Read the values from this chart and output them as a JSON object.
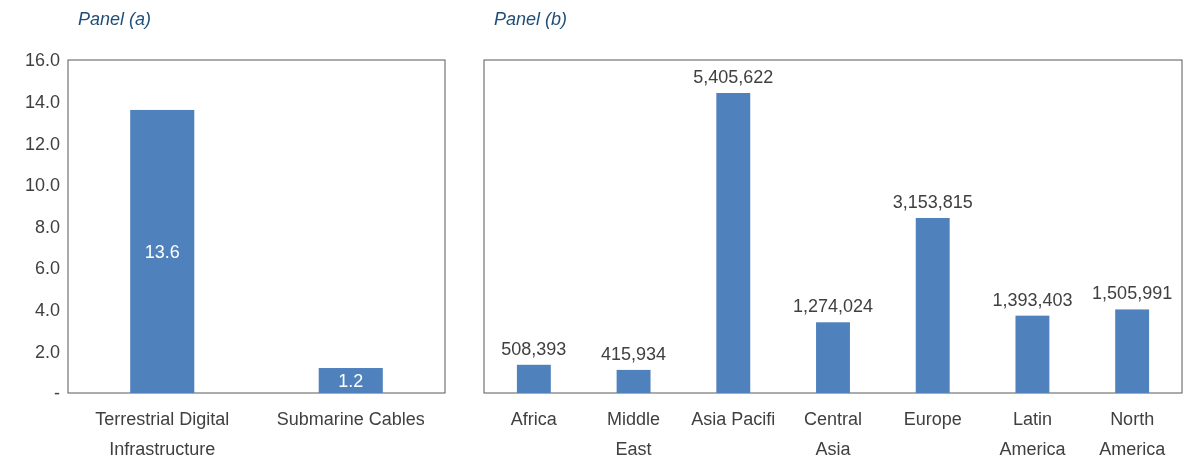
{
  "chart_data": [
    {
      "type": "bar",
      "title": "Panel (a)",
      "categories": [
        "Terrestrial Digital Infrastructure",
        "Submarine Cables"
      ],
      "values": [
        13.6,
        1.2
      ],
      "color": "#4f81bd",
      "ylim": [
        0,
        16
      ],
      "yticks": [
        {
          "value": 0,
          "label": "-"
        },
        {
          "value": 2,
          "label": "2.0"
        },
        {
          "value": 4,
          "label": "4.0"
        },
        {
          "value": 6,
          "label": "6.0"
        },
        {
          "value": 8,
          "label": "8.0"
        },
        {
          "value": 10,
          "label": "10.0"
        },
        {
          "value": 12,
          "label": "12.0"
        },
        {
          "value": 14,
          "label": "14.0"
        },
        {
          "value": 16,
          "label": "16.0"
        }
      ],
      "data_labels": true,
      "grid": false
    },
    {
      "type": "bar",
      "title": "Panel (b)",
      "categories": [
        "Africa",
        "Middle East",
        "Asia Pacifi",
        "Central Asia",
        "Europe",
        "Latin America",
        "North America"
      ],
      "values": [
        508393,
        415934,
        5405622,
        1274024,
        3153815,
        1393403,
        1505991
      ],
      "value_labels": [
        "508,393",
        "415,934",
        "5,405,622",
        "1,274,024",
        "3,153,815",
        "1,393,403",
        "1,505,991"
      ],
      "color": "#4f81bd",
      "tick_labels": "x",
      "grid": false
    }
  ]
}
